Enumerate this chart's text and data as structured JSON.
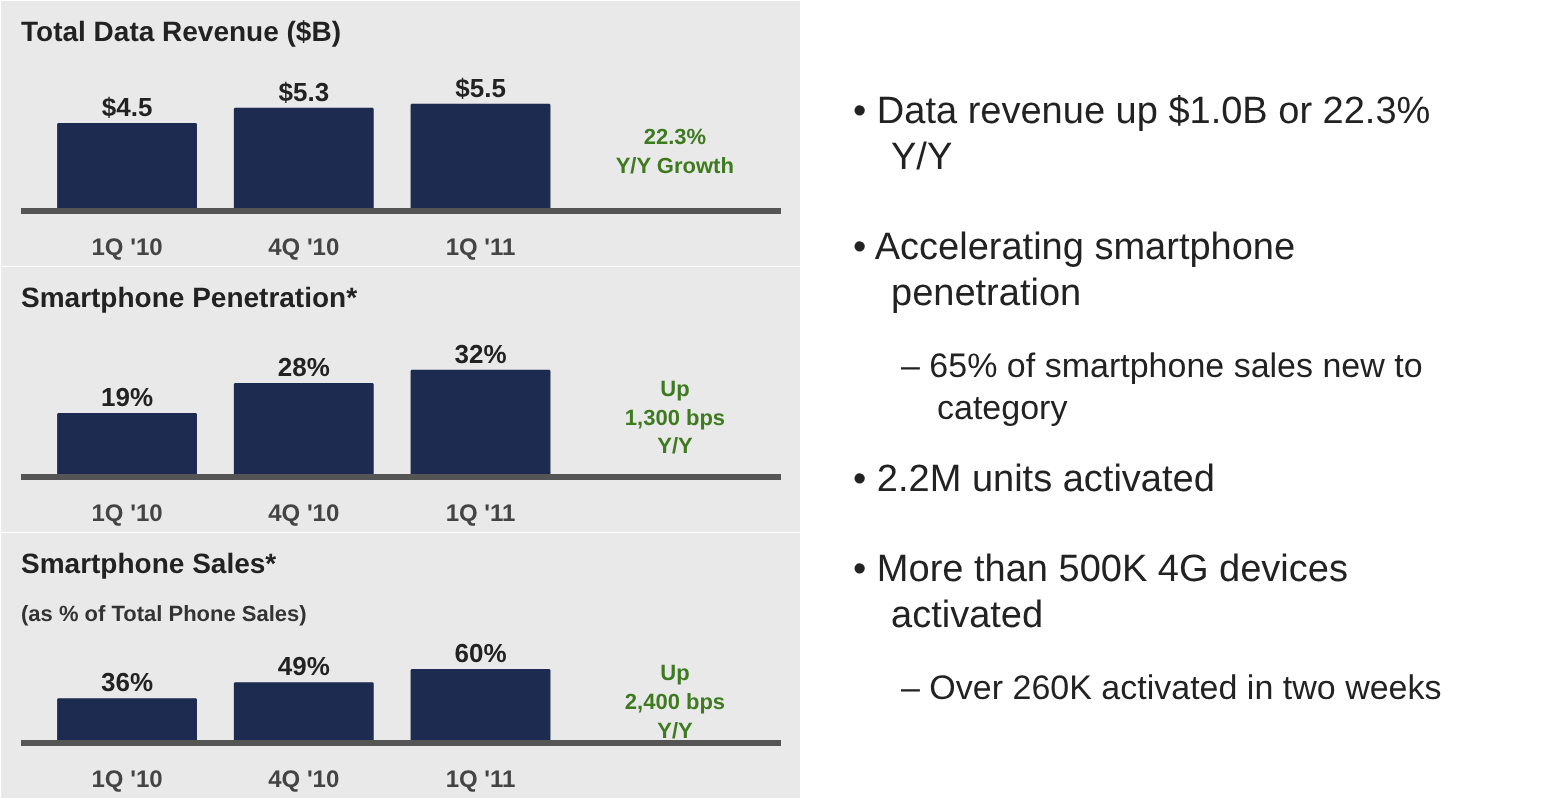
{
  "chart_data": [
    {
      "type": "bar",
      "title": "Total Data Revenue ($B)",
      "categories": [
        "1Q '10",
        "4Q '10",
        "1Q '11"
      ],
      "values": [
        4.5,
        5.3,
        5.5
      ],
      "value_labels": [
        "$4.5",
        "$5.3",
        "$5.5"
      ],
      "color": "#1c2b4f",
      "annotations": [
        "22.3%\nY/Y Growth"
      ]
    },
    {
      "type": "bar",
      "title": "Smartphone Penetration*",
      "categories": [
        "1Q '10",
        "4Q '10",
        "1Q '11"
      ],
      "values": [
        19,
        28,
        32
      ],
      "value_labels": [
        "19%",
        "28%",
        "32%"
      ],
      "color": "#1c2b4f",
      "annotations": [
        "Up\n1,300 bps\nY/Y"
      ]
    },
    {
      "type": "bar",
      "title": "Smartphone Sales*",
      "subtitle": "(as % of Total Phone Sales)",
      "categories": [
        "1Q '10",
        "4Q '10",
        "1Q '11"
      ],
      "values": [
        36,
        49,
        60
      ],
      "value_labels": [
        "36%",
        "49%",
        "60%"
      ],
      "color": "#1c2b4f",
      "annotations": [
        "Up\n2,400 bps\nY/Y"
      ]
    },
    {
      "type": "other",
      "annotations": [
        "• Data revenue up $1.0B or 22.3% Y/Y",
        "• Accelerating smartphone penetration",
        "– 65% of smartphone sales new to category",
        "• 2.2M units activated",
        "• More than 500K 4G devices activated",
        "– Over 260K activated in two weeks"
      ]
    }
  ]
}
